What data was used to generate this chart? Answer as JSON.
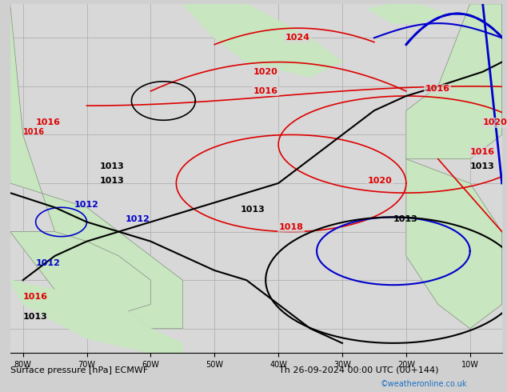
{
  "title": "Surface pressure [hPa] ECMWF",
  "datetime_str": "Th 26-09-2024 00:00 UTC (00+144)",
  "credit": "©weatheronline.co.uk",
  "figsize": [
    6.34,
    4.9
  ],
  "dpi": 100,
  "bg_ocean": "#d8d8d8",
  "bg_land": "#c8e6c0",
  "grid_color": "#aaaaaa",
  "xlabel_color": "#000000",
  "bottom_label_color": "#000000",
  "credit_color": "#1a6fc4"
}
